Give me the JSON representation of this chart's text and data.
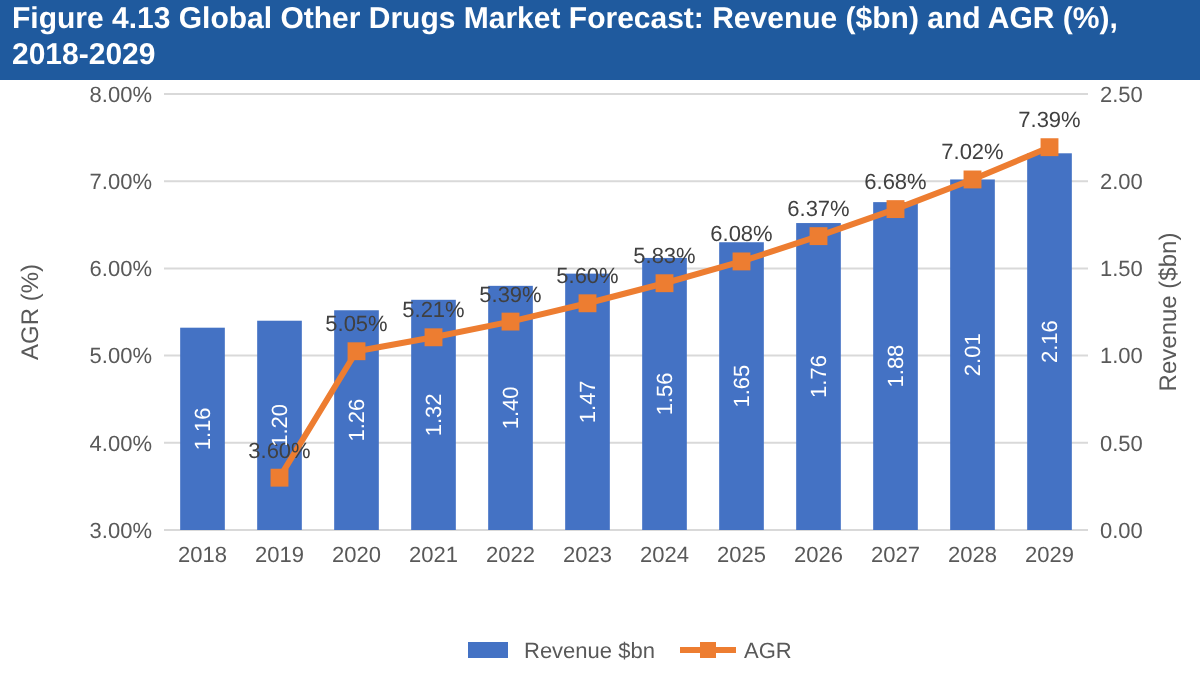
{
  "chart_data": {
    "type": "bar",
    "title": "Figure 4.13 Global Other Drugs Market Forecast: Revenue ($bn) and AGR (%), 2018-2029",
    "categories": [
      "2018",
      "2019",
      "2020",
      "2021",
      "2022",
      "2023",
      "2024",
      "2025",
      "2026",
      "2027",
      "2028",
      "2029"
    ],
    "series": [
      {
        "name": "Revenue $bn",
        "type": "bar",
        "axis": "y2",
        "color": "#4472c4",
        "values": [
          1.16,
          1.2,
          1.26,
          1.32,
          1.4,
          1.47,
          1.56,
          1.65,
          1.76,
          1.88,
          2.01,
          2.16
        ],
        "value_labels": [
          "1.16",
          "1.20",
          "1.26",
          "1.32",
          "1.40",
          "1.47",
          "1.56",
          "1.65",
          "1.76",
          "1.88",
          "2.01",
          "2.16"
        ]
      },
      {
        "name": "AGR",
        "type": "line",
        "axis": "y",
        "color": "#ed7d31",
        "marker": "square",
        "values": [
          null,
          3.6,
          5.05,
          5.21,
          5.39,
          5.6,
          5.83,
          6.08,
          6.37,
          6.68,
          7.02,
          7.39
        ],
        "value_labels": [
          null,
          "3.60%",
          "5.05%",
          "5.21%",
          "5.39%",
          "5.60%",
          "5.83%",
          "6.08%",
          "6.37%",
          "6.68%",
          "7.02%",
          "7.39%"
        ]
      }
    ],
    "ylabel": "AGR (%)",
    "y2label": "Revenue ($bn)",
    "ylim": [
      3,
      8
    ],
    "yticks": [
      {
        "value": 3,
        "label": "3.00%"
      },
      {
        "value": 4,
        "label": "4.00%"
      },
      {
        "value": 5,
        "label": "5.00%"
      },
      {
        "value": 6,
        "label": "6.00%"
      },
      {
        "value": 7,
        "label": "7.00%"
      },
      {
        "value": 8,
        "label": "8.00%"
      }
    ],
    "y2lim": [
      0,
      2.5
    ],
    "y2ticks": [
      {
        "value": 0,
        "label": "0.00"
      },
      {
        "value": 0.5,
        "label": "0.50"
      },
      {
        "value": 1,
        "label": "1.00"
      },
      {
        "value": 1.5,
        "label": "1.50"
      },
      {
        "value": 2,
        "label": "2.00"
      },
      {
        "value": 2.5,
        "label": "2.50"
      }
    ],
    "grid": "y",
    "legend": "bottom"
  }
}
